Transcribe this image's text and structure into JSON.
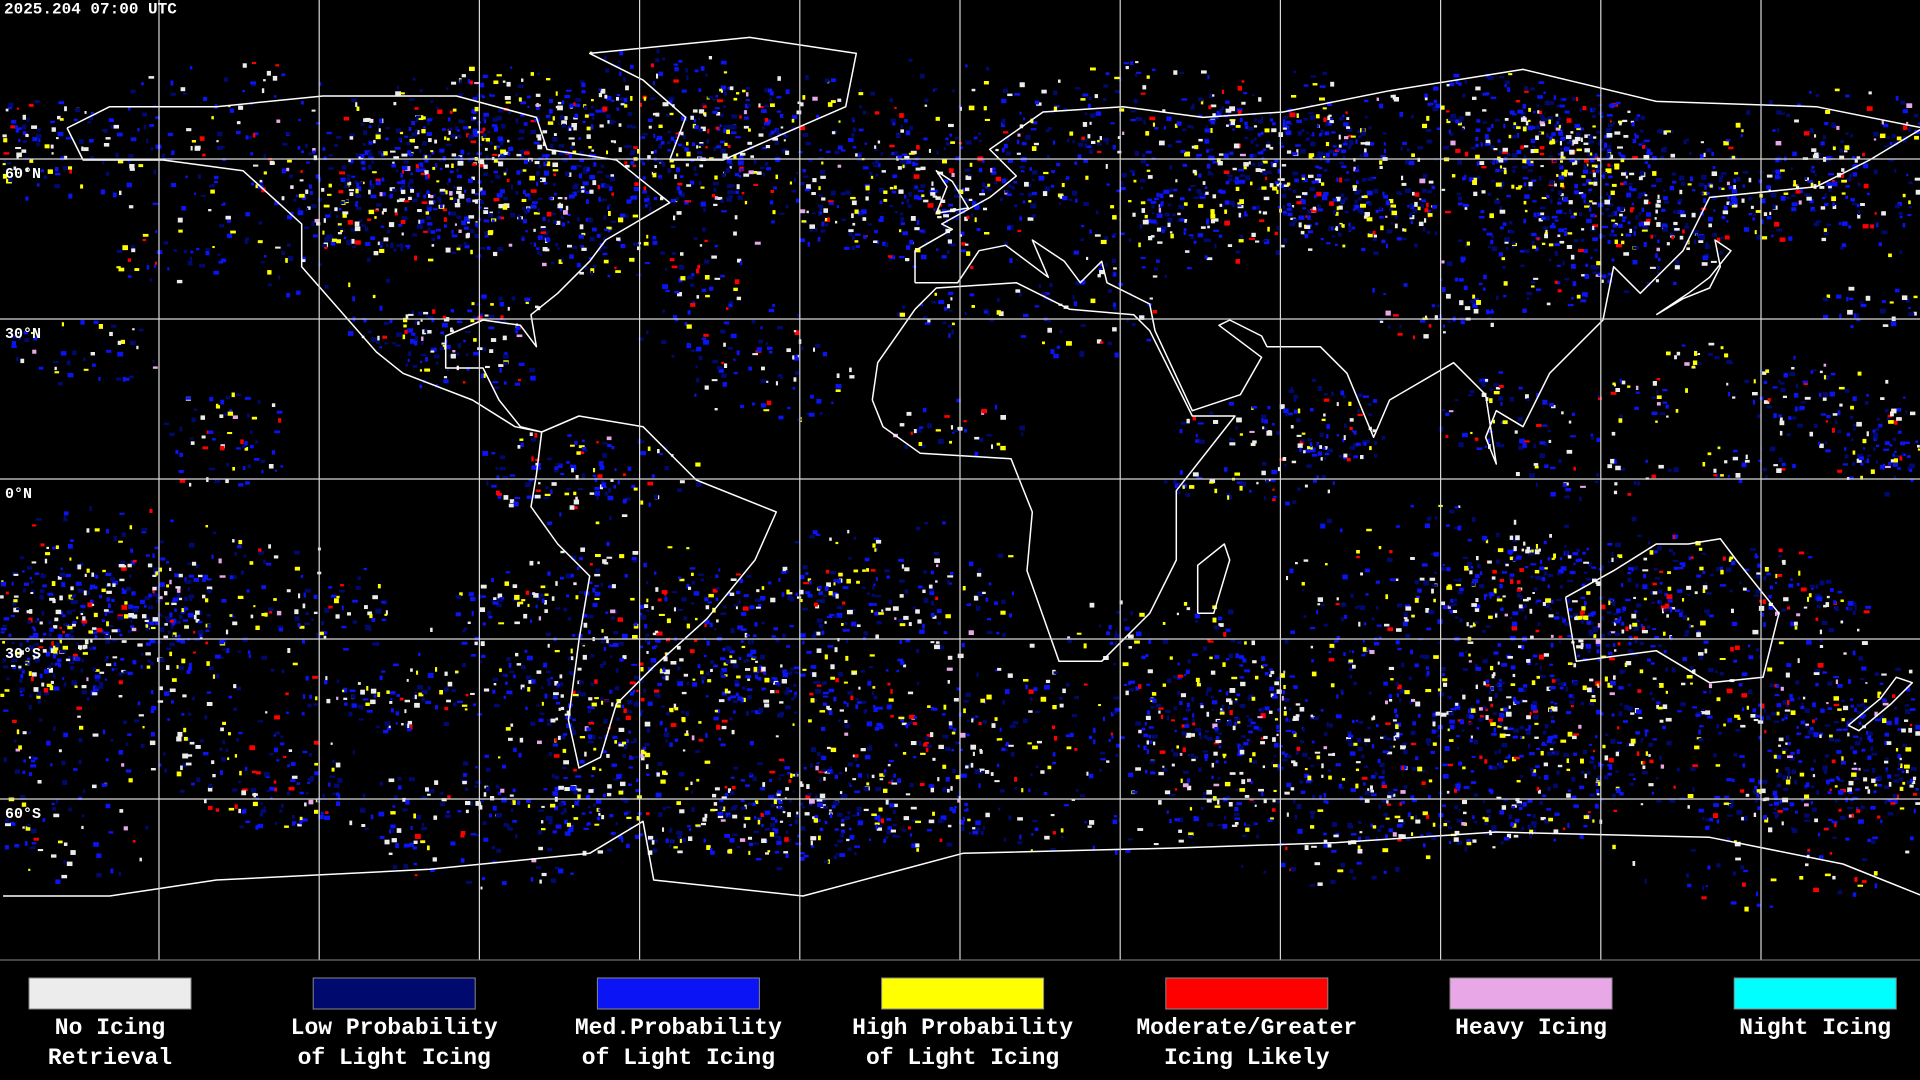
{
  "header": {
    "timestamp": "2025.204 07:00 UTC"
  },
  "map": {
    "lat_labels": [
      "60°N",
      "30°N",
      "0°N",
      "30°S",
      "60°S"
    ]
  },
  "legend": [
    {
      "label_lines": [
        "No Icing",
        "Retrieval"
      ],
      "color": "#ececec"
    },
    {
      "label_lines": [
        "Low Probability",
        "of Light Icing"
      ],
      "color": "#000a6e"
    },
    {
      "label_lines": [
        "Med.Probability",
        "of Light Icing"
      ],
      "color": "#0a14f5"
    },
    {
      "label_lines": [
        "High Probability",
        "of Light Icing"
      ],
      "color": "#ffff00"
    },
    {
      "label_lines": [
        "Moderate/Greater",
        "Icing Likely"
      ],
      "color": "#ff0000"
    },
    {
      "label_lines": [
        "Heavy Icing"
      ],
      "color": "#e8a8e8"
    },
    {
      "label_lines": [
        "Night Icing"
      ],
      "color": "#00ffff"
    }
  ]
}
